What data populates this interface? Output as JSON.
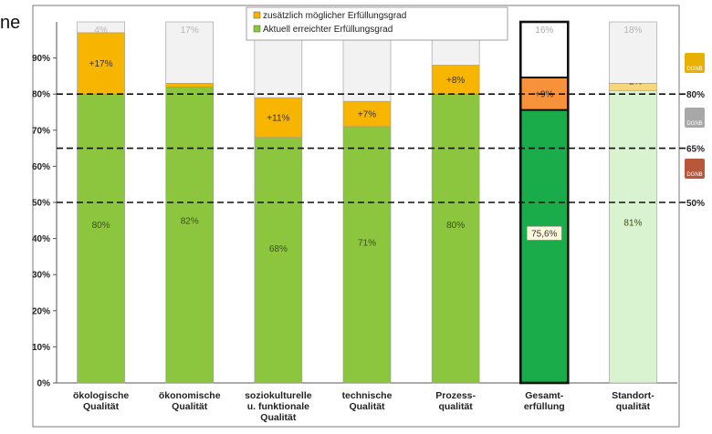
{
  "fragment_text": "ne",
  "chart_data": {
    "type": "bar",
    "stacked": true,
    "categories": [
      [
        "ökologische",
        "Qualität"
      ],
      [
        "ökonomische",
        "Qualität"
      ],
      [
        "soziokulturelle",
        "u. funktionale",
        "Qualität"
      ],
      [
        "technische",
        "Qualität"
      ],
      [
        "Prozess-",
        "qualität"
      ],
      [
        "Gesamt-",
        "erfüllung"
      ],
      [
        "Standort-",
        "qualität"
      ]
    ],
    "series": [
      {
        "name": "Aktuell erreichter Erfüllungsgrad",
        "color": "#8cc63f",
        "values": [
          80,
          82,
          68,
          71,
          80,
          75.6,
          81
        ],
        "labels": [
          "80%",
          "82%",
          "68%",
          "71%",
          "80%",
          "75,6%",
          "81%"
        ]
      },
      {
        "name": "zusätzlich möglicher Erfüllungsgrad",
        "color": "#f7b500",
        "values": [
          17,
          1,
          11,
          7,
          8,
          9,
          2
        ],
        "labels": [
          "+17%",
          "+1%",
          "+11%",
          "+7%",
          "+8%",
          "+9%",
          "+2%"
        ]
      },
      {
        "values": [
          4,
          17,
          21,
          22,
          13,
          16,
          18
        ],
        "color": "#f2f2f2",
        "labels": [
          "4%",
          "17%",
          "21%",
          "22%",
          "",
          "16%",
          "18%"
        ]
      }
    ],
    "overrides": [
      {
        "index": 5,
        "base_color": "#1aab4b",
        "add_color": "#f7923a",
        "rest_color": "#ffffff"
      },
      {
        "index": 6,
        "base_color": "#d9f2cf",
        "add_color": "#f7d77a",
        "rest_color": "#f2f2f2"
      }
    ],
    "yticks": [
      "0%",
      "10%",
      "20%",
      "30%",
      "40%",
      "50%",
      "60%",
      "70%",
      "80%",
      "90%"
    ],
    "ylim": [
      0,
      100
    ],
    "thresholds": [
      {
        "value": 80,
        "label": "80%",
        "color": "#e8b000"
      },
      {
        "value": 65,
        "label": "65%",
        "color": "#a8a8a8"
      },
      {
        "value": 50,
        "label": "50%",
        "color": "#b9573a"
      }
    ],
    "badge_text": "DGNB",
    "grid": false,
    "legend_position": "top"
  }
}
